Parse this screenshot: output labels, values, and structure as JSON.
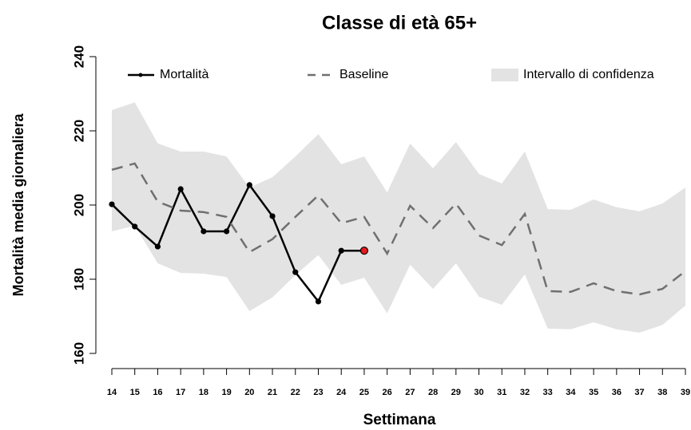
{
  "chart_data": {
    "type": "line",
    "title": "Classe di età 65+",
    "xlabel": "Settimana",
    "ylabel": "Mortalità media giornaliera",
    "x": [
      14,
      15,
      16,
      17,
      18,
      19,
      20,
      21,
      22,
      23,
      24,
      25,
      26,
      27,
      28,
      29,
      30,
      31,
      32,
      33,
      34,
      35,
      36,
      37,
      38,
      39
    ],
    "xlim": [
      14,
      39
    ],
    "xticks": [
      14,
      15,
      16,
      17,
      18,
      19,
      20,
      21,
      22,
      23,
      24,
      25,
      26,
      27,
      28,
      29,
      30,
      31,
      32,
      33,
      34,
      35,
      36,
      37,
      38,
      39
    ],
    "ylim": [
      160,
      240
    ],
    "yticks": [
      160,
      180,
      200,
      220,
      240
    ],
    "last_point_color": "#e41a1c",
    "series": [
      {
        "name": "Mortalità",
        "color": "#000000",
        "style": "solid",
        "values": [
          200.2,
          194.2,
          188.8,
          204.3,
          192.9,
          192.9,
          205.4,
          197,
          181.9,
          174,
          187.7,
          187.7,
          null,
          null,
          null,
          null,
          null,
          null,
          null,
          null,
          null,
          null,
          null,
          null,
          null,
          null
        ]
      },
      {
        "name": "Baseline",
        "color": "#707070",
        "style": "dashed",
        "values": [
          209.5,
          211.2,
          200.9,
          198.5,
          198.1,
          196.8,
          187.3,
          190.8,
          196.8,
          202.6,
          195.1,
          196.8,
          186.9,
          199.8,
          193.8,
          200.4,
          191.8,
          189.2,
          197.6,
          176.8,
          176.6,
          178.9,
          176.8,
          175.9,
          177.4,
          182.2
        ]
      },
      {
        "name": "Intervallo di confidenza",
        "color": "#e3e3e3",
        "style": "band",
        "upper": [
          225.6,
          227.7,
          216.6,
          214.4,
          214.4,
          213.1,
          204.7,
          207.5,
          213.1,
          219.1,
          211,
          213.1,
          203.4,
          216.6,
          209.9,
          217,
          208.4,
          205.8,
          214.4,
          198.9,
          198.7,
          201.5,
          199.4,
          198.3,
          200.4,
          204.7
        ],
        "lower": [
          192.9,
          194.4,
          184.3,
          181.7,
          181.5,
          180.6,
          171.4,
          175.1,
          181.1,
          186.5,
          178.5,
          180.4,
          170.8,
          183.9,
          177.4,
          184.3,
          175.3,
          173.1,
          181.3,
          166.7,
          166.5,
          168.4,
          166.5,
          165.6,
          167.7,
          172.9
        ]
      }
    ]
  }
}
